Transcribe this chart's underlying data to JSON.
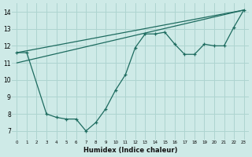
{
  "line_zigzag_x": [
    0,
    1,
    3,
    4,
    5,
    6,
    7,
    8,
    9,
    10,
    11,
    12,
    13,
    14,
    15,
    16,
    17,
    18,
    19,
    20,
    21,
    22,
    23
  ],
  "line_zigzag_y": [
    11.6,
    11.6,
    8.0,
    7.8,
    7.7,
    7.7,
    7.0,
    7.5,
    8.3,
    9.4,
    10.3,
    11.9,
    12.7,
    12.7,
    12.8,
    12.1,
    11.5,
    11.5,
    12.1,
    12.0,
    12.0,
    13.1,
    14.1
  ],
  "trend1_x": [
    0,
    23
  ],
  "trend1_y": [
    11.6,
    14.1
  ],
  "trend2_x": [
    0,
    23
  ],
  "trend2_y": [
    11.0,
    14.1
  ],
  "background_color": "#ceeae7",
  "grid_color": "#aed4d0",
  "line_color": "#1d6b5f",
  "xlabel": "Humidex (Indice chaleur)",
  "xlim": [
    -0.5,
    23.5
  ],
  "ylim": [
    6.5,
    14.5
  ],
  "yticks": [
    7,
    8,
    9,
    10,
    11,
    12,
    13,
    14
  ],
  "xticks": [
    0,
    1,
    2,
    3,
    4,
    5,
    6,
    7,
    8,
    9,
    10,
    11,
    12,
    13,
    14,
    15,
    16,
    17,
    18,
    19,
    20,
    21,
    22,
    23
  ]
}
